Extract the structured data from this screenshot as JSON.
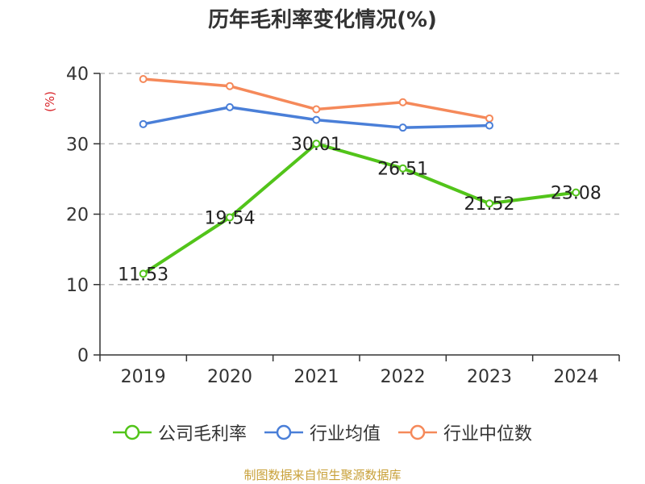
{
  "chart_data": {
    "type": "line",
    "title": "历年毛利率变化情况(%)",
    "ylabel": "(%)",
    "xlabel": "",
    "categories": [
      "2019",
      "2020",
      "2021",
      "2022",
      "2023",
      "2024"
    ],
    "ylim": [
      0,
      40
    ],
    "yticks": [
      0,
      10,
      20,
      30,
      40
    ],
    "grid": true,
    "legend_position": "bottom",
    "series": [
      {
        "name": "公司毛利率",
        "color": "#52c41a",
        "values": [
          11.53,
          19.54,
          30.01,
          26.51,
          21.52,
          23.08
        ],
        "labels": [
          "11.53",
          "19.54",
          "30.01",
          "26.51",
          "21.52",
          "23.08"
        ]
      },
      {
        "name": "行业均值",
        "color": "#4a7fd8",
        "values": [
          32.8,
          35.2,
          33.4,
          32.3,
          32.6,
          null
        ]
      },
      {
        "name": "行业中位数",
        "color": "#f5895a",
        "values": [
          39.2,
          38.2,
          34.9,
          35.9,
          33.6,
          null
        ]
      }
    ]
  },
  "source": "制图数据来自恒生聚源数据库"
}
